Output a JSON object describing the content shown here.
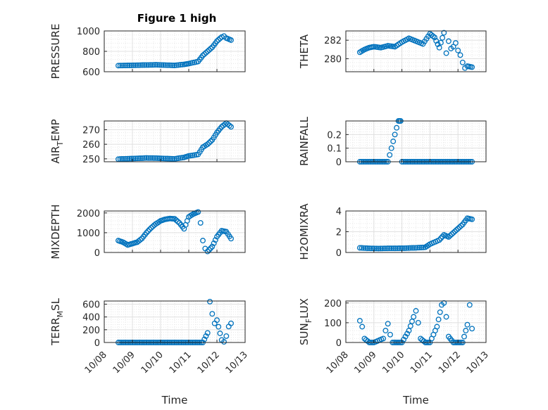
{
  "figure": {
    "title": "Figure 1 high"
  },
  "chart_data": [
    {
      "type": "scatter",
      "ylabel": "PRESSURE",
      "xlabel": "",
      "xlim": [
        "10/08",
        "10/13"
      ],
      "ylim": [
        600,
        1000
      ],
      "yticks": [
        600,
        800,
        1000
      ],
      "ytick_labels": [
        "600",
        "800",
        "1000"
      ],
      "xtick_labels": [],
      "grid": true,
      "x": [
        "10/08 12:00",
        "10/08 20:00",
        "10/09 04:00",
        "10/09 12:00",
        "10/09 20:00",
        "10/10 04:00",
        "10/10 12:00",
        "10/10 20:00",
        "10/11 00:00",
        "10/11 08:00",
        "10/11 12:00",
        "10/11 16:00",
        "10/11 20:00",
        "10/12 00:00",
        "10/12 04:00",
        "10/12 06:00",
        "10/12 08:00",
        "10/12 12:00"
      ],
      "y": [
        660,
        662,
        664,
        666,
        668,
        665,
        662,
        672,
        680,
        700,
        760,
        800,
        840,
        900,
        940,
        950,
        930,
        910
      ]
    },
    {
      "type": "scatter",
      "ylabel": "THETA",
      "xlabel": "",
      "xlim": [
        "10/08",
        "10/13"
      ],
      "ylim": [
        278.6,
        283
      ],
      "yticks": [
        280,
        282
      ],
      "ytick_labels": [
        "280",
        "282"
      ],
      "xtick_labels": [],
      "grid": true,
      "x": [
        "10/08 12:00",
        "10/08 16:00",
        "10/08 20:00",
        "10/09 00:00",
        "10/09 06:00",
        "10/09 12:00",
        "10/09 18:00",
        "10/10 00:00",
        "10/10 06:00",
        "10/10 12:00",
        "10/10 18:00",
        "10/11 00:00",
        "10/11 04:00",
        "10/11 08:00",
        "10/11 12:00",
        "10/11 14:00",
        "10/11 16:00",
        "10/11 18:00",
        "10/11 20:00",
        "10/11 22:00",
        "10/12 00:00",
        "10/12 02:00",
        "10/12 04:00",
        "10/12 06:00",
        "10/12 08:00",
        "10/12 12:00"
      ],
      "y": [
        280.7,
        281.0,
        281.2,
        281.3,
        281.2,
        281.4,
        281.3,
        281.8,
        282.2,
        281.9,
        281.6,
        282.7,
        282.3,
        281.2,
        282.8,
        280.6,
        281.9,
        281.1,
        281.3,
        281.7,
        280.9,
        280.4,
        279.6,
        279.0,
        279.2,
        279.1
      ]
    },
    {
      "type": "scatter",
      "ylabel": "AIR_TEMP",
      "xlabel": "",
      "xlim": [
        "10/08",
        "10/13"
      ],
      "ylim": [
        248,
        276
      ],
      "yticks": [
        250,
        260,
        270
      ],
      "ytick_labels": [
        "250",
        "260",
        "270"
      ],
      "xtick_labels": [],
      "grid": true,
      "x": [
        "10/08 12:00",
        "10/08 20:00",
        "10/09 04:00",
        "10/09 12:00",
        "10/09 20:00",
        "10/10 04:00",
        "10/10 12:00",
        "10/10 20:00",
        "10/11 00:00",
        "10/11 08:00",
        "10/11 12:00",
        "10/11 16:00",
        "10/11 20:00",
        "10/12 00:00",
        "10/12 04:00",
        "10/12 08:00",
        "10/12 12:00"
      ],
      "y": [
        249.8,
        250.1,
        250.3,
        250.6,
        250.5,
        250.2,
        250.0,
        251.0,
        252.0,
        253.0,
        258.0,
        260.0,
        263.0,
        268.0,
        272.0,
        274.5,
        272.0
      ]
    },
    {
      "type": "scatter",
      "ylabel": "RAINFALL",
      "xlabel": "",
      "xlim": [
        "10/08",
        "10/13"
      ],
      "ylim": [
        0,
        0.3
      ],
      "yticks": [
        0,
        0.1,
        0.2
      ],
      "ytick_labels": [
        "0",
        "0.1",
        "0.2"
      ],
      "xtick_labels": [],
      "grid": true,
      "x": [
        "10/08 12:00",
        "10/09 00:00",
        "10/09 12:00",
        "10/09 21:00",
        "10/09 22:00",
        "10/09 23:00",
        "10/10 00:00",
        "10/10 12:00",
        "10/11 00:00",
        "10/11 12:00",
        "10/12 00:00",
        "10/12 12:00"
      ],
      "y": [
        0,
        0,
        0,
        0.3,
        0.3,
        0.3,
        0,
        0,
        0,
        0,
        0,
        0
      ]
    },
    {
      "type": "scatter",
      "ylabel": "MIXDEPTH",
      "xlabel": "",
      "xlim": [
        "10/08",
        "10/13"
      ],
      "ylim": [
        0,
        2100
      ],
      "yticks": [
        0,
        1000,
        2000
      ],
      "ytick_labels": [
        "0",
        "1000",
        "2000"
      ],
      "xtick_labels": [],
      "grid": true,
      "x": [
        "10/08 12:00",
        "10/08 16:00",
        "10/08 20:00",
        "10/09 00:00",
        "10/09 04:00",
        "10/09 08:00",
        "10/09 12:00",
        "10/09 16:00",
        "10/09 20:00",
        "10/10 00:00",
        "10/10 04:00",
        "10/10 08:00",
        "10/10 12:00",
        "10/10 16:00",
        "10/10 20:00",
        "10/11 00:00",
        "10/11 04:00",
        "10/11 08:00",
        "10/11 10:00",
        "10/11 12:00",
        "10/11 14:00",
        "10/11 16:00",
        "10/11 20:00",
        "10/12 00:00",
        "10/12 04:00",
        "10/12 08:00",
        "10/12 12:00"
      ],
      "y": [
        600,
        520,
        380,
        450,
        520,
        700,
        1000,
        1250,
        1450,
        1600,
        1680,
        1720,
        1700,
        1500,
        1200,
        1800,
        1950,
        2050,
        1500,
        600,
        200,
        50,
        300,
        800,
        1100,
        1050,
        700
      ]
    },
    {
      "type": "scatter",
      "ylabel": "H2OMIXRA",
      "xlabel": "",
      "xlim": [
        "10/08",
        "10/13"
      ],
      "ylim": [
        0,
        4
      ],
      "yticks": [
        0,
        2,
        4
      ],
      "ytick_labels": [
        "0",
        "2",
        "4"
      ],
      "xtick_labels": [],
      "grid": true,
      "x": [
        "10/08 12:00",
        "10/08 20:00",
        "10/09 04:00",
        "10/09 12:00",
        "10/09 20:00",
        "10/10 04:00",
        "10/10 12:00",
        "10/10 20:00",
        "10/11 00:00",
        "10/11 08:00",
        "10/11 12:00",
        "10/11 16:00",
        "10/11 20:00",
        "10/12 00:00",
        "10/12 04:00",
        "10/12 08:00",
        "10/12 12:00"
      ],
      "y": [
        0.45,
        0.4,
        0.38,
        0.4,
        0.4,
        0.42,
        0.45,
        0.5,
        0.8,
        1.2,
        1.7,
        1.5,
        1.9,
        2.3,
        2.7,
        3.3,
        3.2
      ]
    },
    {
      "type": "scatter",
      "ylabel": "TERR_MSL",
      "xlabel": "Time",
      "xlim": [
        "10/08",
        "10/13"
      ],
      "ylim": [
        0,
        650
      ],
      "yticks": [
        0,
        200,
        400,
        600
      ],
      "ytick_labels": [
        "0",
        "200",
        "400",
        "600"
      ],
      "xtick_labels": [
        "10/08",
        "10/09",
        "10/10",
        "10/11",
        "10/12",
        "10/13"
      ],
      "grid": true,
      "x": [
        "10/08 12:00",
        "10/09 00:00",
        "10/09 12:00",
        "10/10 00:00",
        "10/10 12:00",
        "10/11 00:00",
        "10/11 12:00",
        "10/11 16:00",
        "10/11 18:00",
        "10/11 20:00",
        "10/11 22:00",
        "10/12 00:00",
        "10/12 04:00",
        "10/12 06:00",
        "10/12 08:00",
        "10/12 10:00",
        "10/12 12:00"
      ],
      "y": [
        0,
        0,
        0,
        0,
        0,
        0,
        0,
        150,
        640,
        450,
        300,
        350,
        40,
        10,
        100,
        250,
        300
      ]
    },
    {
      "type": "scatter",
      "ylabel": "SUN_FLUX",
      "xlabel": "Time",
      "xlim": [
        "10/08",
        "10/13"
      ],
      "ylim": [
        0,
        210
      ],
      "yticks": [
        0,
        100,
        200
      ],
      "ytick_labels": [
        "0",
        "100",
        "200"
      ],
      "xtick_labels": [
        "10/08",
        "10/09",
        "10/10",
        "10/11",
        "10/12",
        "10/13"
      ],
      "grid": true,
      "x": [
        "10/08 12:00",
        "10/08 14:00",
        "10/08 16:00",
        "10/08 20:00",
        "10/09 00:00",
        "10/09 08:00",
        "10/09 10:00",
        "10/09 12:00",
        "10/09 14:00",
        "10/09 16:00",
        "10/09 20:00",
        "10/10 00:00",
        "10/10 06:00",
        "10/10 10:00",
        "10/10 12:00",
        "10/10 14:00",
        "10/10 16:00",
        "10/10 20:00",
        "10/11 00:00",
        "10/11 06:00",
        "10/11 10:00",
        "10/11 12:00",
        "10/11 14:00",
        "10/11 16:00",
        "10/11 20:00",
        "10/12 00:00",
        "10/12 04:00",
        "10/12 08:00",
        "10/12 10:00",
        "10/12 12:00"
      ],
      "y": [
        110,
        80,
        20,
        0,
        0,
        20,
        60,
        95,
        40,
        0,
        0,
        0,
        60,
        130,
        160,
        100,
        20,
        0,
        0,
        80,
        190,
        200,
        130,
        30,
        0,
        0,
        0,
        90,
        190,
        70
      ]
    }
  ],
  "style": {
    "marker_color": "#0072BD",
    "grid_color": "#e0e0e0",
    "axes_color": "#262626"
  }
}
